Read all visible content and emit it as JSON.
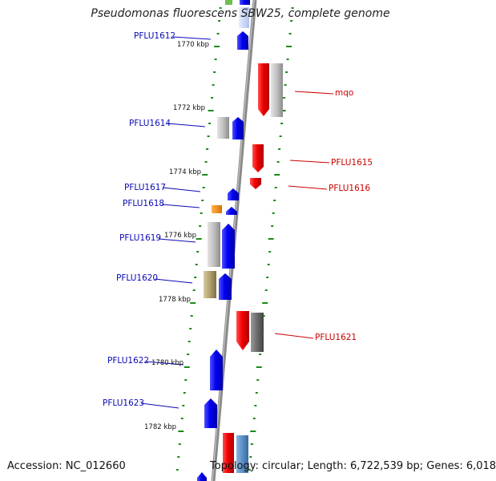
{
  "title": "Pseudomonas fluorescens SBW25, complete genome",
  "accession": "Accession: NC_012660",
  "topology": "Topology: circular; Length: 6,722,539 bp; Genes: 6,018",
  "colors": {
    "backbone": "#8a8a8a",
    "scale_tick": "#1a8a1a",
    "plus_strand_gene": "#0a0ae6",
    "minus_strand_gene": "#e60a0a",
    "plus_label": "#0a0ab4",
    "minus_label": "#cc0000",
    "pseudo_light_gray": "#bcbcbc",
    "pseudo_dark_gray": "#6e6e6e",
    "orange_feature": "#f08c14",
    "olive_feature": "#b0a070",
    "steel_blue_feature": "#5b8fc7",
    "light_blue_feature": "#c8d4ff"
  },
  "scale_labels": [
    "1770 kbp",
    "1772 kbp",
    "1774 kbp",
    "1776 kbp",
    "1778 kbp",
    "1780 kbp",
    "1782 kbp"
  ],
  "genes_left": [
    "PFLU1612",
    "PFLU1614",
    "PFLU1617",
    "PFLU1618",
    "PFLU1619",
    "PFLU1620",
    "PFLU1622",
    "PFLU1623"
  ],
  "genes_right": [
    "mqo",
    "PFLU1615",
    "PFLU1616",
    "PFLU1621"
  ]
}
